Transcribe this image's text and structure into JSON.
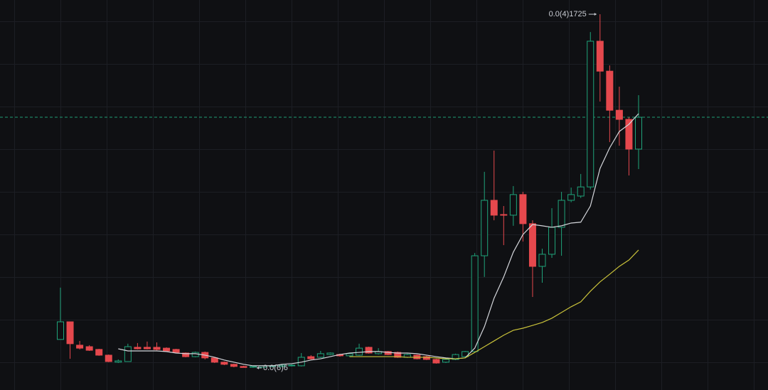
{
  "chart_data": {
    "type": "candlestick",
    "open": [
      1.94e-06,
      2.77e-06,
      1.67e-06,
      1.6e-06,
      1.47e-06,
      1.2e-06,
      8.7e-07,
      9e-07,
      1.57e-06,
      1.57e-06,
      1.57e-06,
      1.53e-06,
      1.47e-06,
      1.3e-06,
      1.13e-06,
      1.33e-06,
      1.07e-06,
      8.7e-07,
      7.7e-07,
      6.7e-07,
      6.3e-07,
      6.3e-07,
      6.7e-07,
      6.7e-07,
      7e-07,
      7e-07,
      1.13e-06,
      1.1e-06,
      1.23e-06,
      1.23e-06,
      1.17e-06,
      1.2e-06,
      1.57e-06,
      1.27e-06,
      1.37e-06,
      1.33e-06,
      1.1e-06,
      1.2e-06,
      1.13e-06,
      1e-06,
      8.7e-07,
      1e-06,
      1.13e-06,
      1.37e-06,
      5.88e-06,
      8.49e-06,
      7.82e-06,
      7.79e-06,
      8.76e-06,
      7.39e-06,
      5.38e-06,
      5.95e-06,
      7.22e-06,
      8.49e-06,
      8.69e-06,
      9.12e-06,
      1.598e-05,
      1.457e-05,
      1.273e-05,
      1.23e-05,
      1.09e-05
    ],
    "high": [
      4.38e-06,
      2.77e-06,
      1.87e-06,
      1.67e-06,
      1.5e-06,
      1.23e-06,
      1e-06,
      1.74e-06,
      1.77e-06,
      1.84e-06,
      1.8e-06,
      1.57e-06,
      1.5e-06,
      1.33e-06,
      1.37e-06,
      1.37e-06,
      1.1e-06,
      9e-07,
      8e-07,
      7e-07,
      7e-07,
      7.3e-07,
      7.3e-07,
      7.7e-07,
      7.7e-07,
      1.3e-06,
      1.2e-06,
      1.4e-06,
      1.33e-06,
      1.27e-06,
      1.3e-06,
      1.74e-06,
      1.6e-06,
      1.53e-06,
      1.4e-06,
      1.37e-06,
      1.27e-06,
      1.23e-06,
      1.17e-06,
      1.03e-06,
      1.03e-06,
      1.27e-06,
      1.4e-06,
      6.01e-06,
      9.83e-06,
      1.083e-05,
      8.22e-06,
      9.16e-06,
      8.89e-06,
      7.55e-06,
      6.21e-06,
      8.12e-06,
      8.89e-06,
      9.09e-06,
      9.73e-06,
      1.641e-05,
      1.725e-05,
      1.484e-05,
      1.384e-05,
      1.24e-05,
      1.344e-05
    ],
    "low": [
      1.94e-06,
      1.03e-06,
      1.47e-06,
      1.4e-06,
      1.17e-06,
      8.7e-07,
      8.3e-07,
      9e-07,
      1.47e-06,
      1.47e-06,
      1.43e-06,
      1.37e-06,
      1.3e-06,
      1.1e-06,
      1.1e-06,
      1e-06,
      8.3e-07,
      7.3e-07,
      6.3e-07,
      6.2e-07,
      6e-07,
      6.2e-07,
      6.3e-07,
      6.3e-07,
      6.7e-07,
      6.7e-07,
      1e-06,
      1.07e-06,
      1.2e-06,
      1.13e-06,
      1.13e-06,
      1.17e-06,
      1.27e-06,
      1.23e-06,
      1.2e-06,
      1.07e-06,
      1.07e-06,
      1e-06,
      9.7e-07,
      8e-07,
      8.3e-07,
      9.7e-07,
      1.1e-06,
      1.33e-06,
      4.88e-06,
      7.55e-06,
      6.38e-06,
      7.29e-06,
      6.55e-06,
      3.94e-06,
      4.61e-06,
      5.78e-06,
      5.88e-06,
      8.4e-06,
      8.6e-06,
      9e-06,
      1.314e-05,
      1.123e-05,
      1.106e-05,
      9.66e-06,
      9.96e-06
    ],
    "close": [
      2.77e-06,
      1.74e-06,
      1.53e-06,
      1.43e-06,
      1.2e-06,
      9e-07,
      9.3e-07,
      1.6e-06,
      1.5e-06,
      1.5e-06,
      1.47e-06,
      1.4e-06,
      1.33e-06,
      1.13e-06,
      1.33e-06,
      1.07e-06,
      8.7e-07,
      7.7e-07,
      6.7e-07,
      6.2e-07,
      6.7e-07,
      7e-07,
      7e-07,
      7.3e-07,
      7.3e-07,
      1.1e-06,
      1.03e-06,
      1.27e-06,
      1.3e-06,
      1.17e-06,
      1.27e-06,
      1.53e-06,
      1.3e-06,
      1.37e-06,
      1.23e-06,
      1.1e-06,
      1.23e-06,
      1.03e-06,
      1e-06,
      8.3e-07,
      1e-06,
      1.23e-06,
      1.37e-06,
      5.88e-06,
      8.49e-06,
      7.79e-06,
      7.79e-06,
      8.76e-06,
      7.39e-06,
      5.38e-06,
      5.95e-06,
      7.22e-06,
      8.49e-06,
      8.76e-06,
      9.12e-06,
      1.598e-05,
      1.457e-05,
      1.273e-05,
      1.23e-05,
      1.09e-05,
      1.24e-05
    ],
    "up_color": "#1fa37a",
    "down_color": "#e5484d",
    "series": [
      {
        "color": "#d4d6db",
        "values": [
          null,
          null,
          null,
          null,
          null,
          null,
          1.5e-06,
          1.4e-06,
          1.4e-06,
          1.4e-06,
          1.4e-06,
          1.37e-06,
          1.3e-06,
          1.27e-06,
          1.27e-06,
          1.2e-06,
          1.1e-06,
          9.7e-07,
          8.7e-07,
          7.7e-07,
          7e-07,
          7e-07,
          7e-07,
          7.7e-07,
          8e-07,
          8.7e-07,
          9.7e-07,
          1.03e-06,
          1.13e-06,
          1.23e-06,
          1.3e-06,
          1.33e-06,
          1.37e-06,
          1.37e-06,
          1.33e-06,
          1.3e-06,
          1.3e-06,
          1.27e-06,
          1.2e-06,
          1.13e-06,
          1.07e-06,
          1.03e-06,
          1.07e-06,
          1.53e-06,
          2.54e-06,
          3.88e-06,
          4.88e-06,
          6.05e-06,
          6.88e-06,
          7.35e-06,
          7.29e-06,
          7.22e-06,
          7.29e-06,
          7.42e-06,
          7.46e-06,
          8.22e-06,
          9.99e-06,
          1.096e-05,
          1.173e-05,
          1.207e-05,
          1.257e-05
        ]
      },
      {
        "color": "#c9c23a",
        "values": [
          null,
          null,
          null,
          null,
          null,
          null,
          null,
          null,
          null,
          null,
          null,
          null,
          null,
          null,
          null,
          null,
          null,
          null,
          null,
          null,
          null,
          null,
          null,
          null,
          null,
          null,
          null,
          null,
          null,
          null,
          1.13e-06,
          1.13e-06,
          1.13e-06,
          1.13e-06,
          1.13e-06,
          1.13e-06,
          1.1e-06,
          1.1e-06,
          1.1e-06,
          1.07e-06,
          1.03e-06,
          1.03e-06,
          1.07e-06,
          1.33e-06,
          1.6e-06,
          1.87e-06,
          2.14e-06,
          2.37e-06,
          2.47e-06,
          2.6e-06,
          2.74e-06,
          2.94e-06,
          3.21e-06,
          3.48e-06,
          3.71e-06,
          4.21e-06,
          4.65e-06,
          5.01e-06,
          5.38e-06,
          5.68e-06,
          6.15e-06
        ]
      }
    ],
    "annotations": [
      {
        "value": 1.725e-05,
        "label": "0.0(4)1725"
      },
      {
        "value": 6e-07,
        "label": "0.0(6)6"
      }
    ],
    "price_line_color": "#1f9e74",
    "ylim": [
      -4.4e-07,
      1.792e-05
    ],
    "grid": true
  }
}
